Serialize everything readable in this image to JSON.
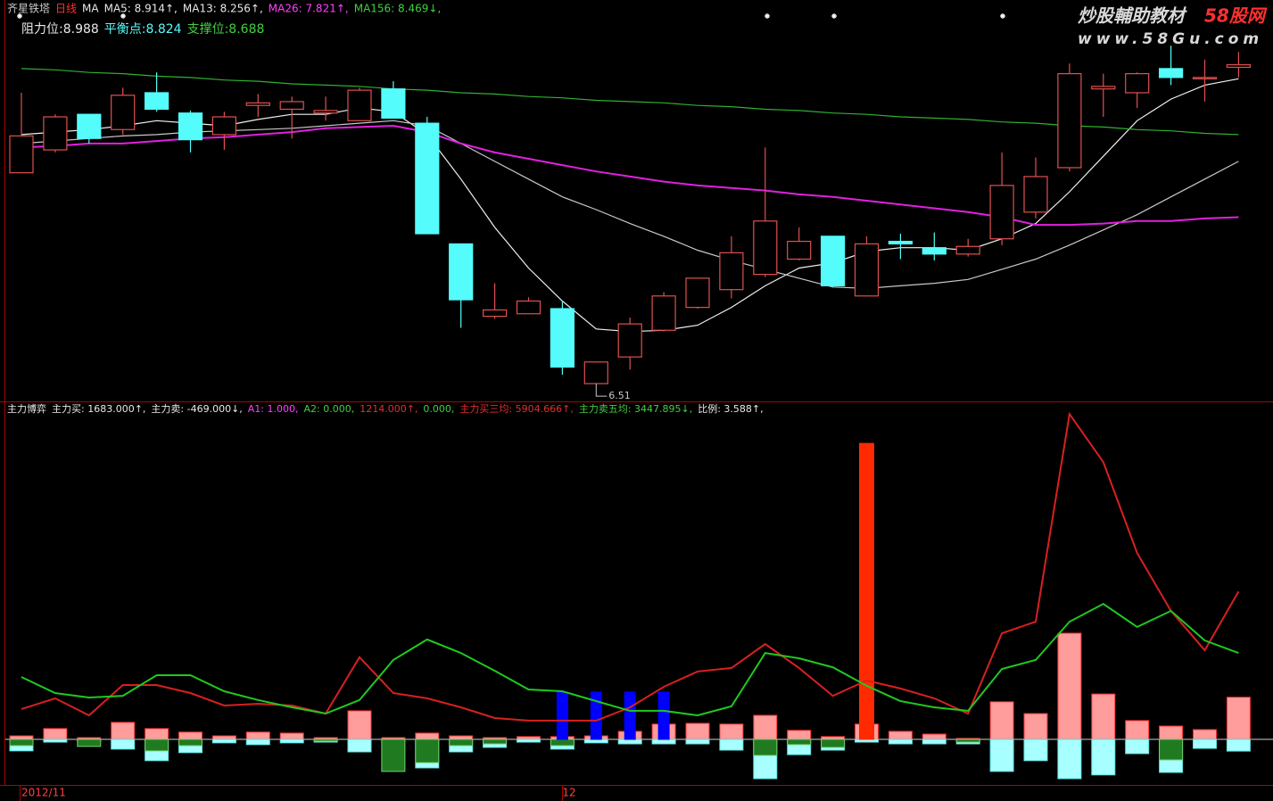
{
  "watermark": {
    "text": "炒股輔助教材",
    "brand": "58股网",
    "url": "www.58Gu.com"
  },
  "chart_data": [
    {
      "type": "candlestick",
      "title": "齐星铁塔",
      "period": "日线",
      "readouts": [
        {
          "text": "MA",
          "color": "#e8e8e8"
        },
        {
          "text": "MA5: 8.914↑,",
          "color": "#e8e8e8"
        },
        {
          "text": "MA13: 8.256↑,",
          "color": "#e8e8e8"
        },
        {
          "text": "MA26: 7.821↑,",
          "color": "#ff40ff"
        },
        {
          "text": "MA156: 8.469↓,",
          "color": "#40d040"
        }
      ],
      "levels": [
        {
          "text": "阻力位:8.988",
          "color": "#e8e8e8"
        },
        {
          "text": "平衡点:8.824",
          "color": "#54fcfc"
        },
        {
          "text": "支撑位:8.688",
          "color": "#40d040"
        }
      ],
      "min_label": "6.51",
      "up_color": "#e05050",
      "down_color": "#54fcfc",
      "ylim": [
        6.37,
        9.53
      ],
      "open": [
        8.17,
        8.35,
        8.63,
        8.51,
        8.8,
        8.64,
        8.47,
        8.7,
        8.67,
        8.64,
        8.58,
        8.83,
        8.56,
        7.61,
        7.04,
        7.06,
        7.1,
        6.51,
        6.72,
        6.93,
        7.11,
        7.25,
        7.37,
        7.49,
        7.67,
        7.2,
        7.63,
        7.58,
        7.53,
        7.65,
        7.86,
        8.21,
        8.83,
        8.8,
        8.99,
        8.91,
        9.0
      ],
      "high": [
        8.8,
        8.63,
        8.63,
        8.84,
        8.96,
        8.66,
        8.65,
        8.79,
        8.77,
        8.77,
        8.84,
        8.89,
        8.61,
        7.61,
        7.3,
        7.19,
        7.16,
        6.68,
        7.03,
        7.23,
        7.34,
        7.67,
        8.37,
        7.74,
        7.67,
        7.67,
        7.69,
        7.7,
        7.65,
        8.33,
        8.29,
        9.03,
        8.95,
        8.96,
        9.17,
        9.06,
        9.12
      ],
      "low": [
        8.17,
        8.33,
        8.4,
        8.47,
        8.65,
        8.33,
        8.35,
        8.61,
        8.44,
        8.58,
        8.58,
        8.6,
        7.69,
        6.95,
        7.02,
        7.06,
        6.58,
        6.51,
        6.62,
        6.92,
        7.1,
        7.18,
        7.35,
        7.48,
        7.27,
        7.2,
        7.49,
        7.48,
        7.51,
        7.6,
        7.81,
        8.18,
        8.61,
        8.68,
        8.86,
        8.73,
        8.92
      ],
      "close": [
        8.46,
        8.61,
        8.44,
        8.78,
        8.67,
        8.43,
        8.61,
        8.72,
        8.73,
        8.66,
        8.82,
        8.6,
        7.69,
        7.17,
        7.09,
        7.16,
        6.64,
        6.68,
        6.98,
        7.2,
        7.34,
        7.54,
        7.79,
        7.63,
        7.28,
        7.61,
        7.61,
        7.53,
        7.59,
        8.07,
        8.14,
        8.95,
        8.85,
        8.95,
        8.92,
        8.92,
        9.02
      ],
      "series": [
        {
          "color": "#f0f0f0",
          "values": [
            8.47,
            8.49,
            8.51,
            8.54,
            8.58,
            8.56,
            8.54,
            8.59,
            8.63,
            8.63,
            8.68,
            8.65,
            8.47,
            8.12,
            7.74,
            7.42,
            7.16,
            6.94,
            6.92,
            6.93,
            6.97,
            7.11,
            7.28,
            7.42,
            7.46,
            7.55,
            7.58,
            7.58,
            7.56,
            7.65,
            7.77,
            8.02,
            8.3,
            8.58,
            8.75,
            8.86,
            8.91
          ]
        },
        {
          "color": "#c8c8c8",
          "values": [
            8.4,
            8.42,
            8.44,
            8.46,
            8.47,
            8.49,
            8.5,
            8.51,
            8.52,
            8.54,
            8.56,
            8.58,
            8.54,
            8.4,
            8.26,
            8.12,
            7.98,
            7.88,
            7.77,
            7.67,
            7.56,
            7.48,
            7.41,
            7.34,
            7.27,
            7.26,
            7.28,
            7.3,
            7.33,
            7.41,
            7.49,
            7.6,
            7.72,
            7.84,
            7.98,
            8.12,
            8.26
          ]
        },
        {
          "color": "#e020e0",
          "values": [
            8.37,
            8.38,
            8.4,
            8.4,
            8.42,
            8.44,
            8.45,
            8.47,
            8.49,
            8.52,
            8.53,
            8.54,
            8.49,
            8.4,
            8.33,
            8.28,
            8.23,
            8.18,
            8.14,
            8.1,
            8.07,
            8.05,
            8.03,
            8.0,
            7.98,
            7.95,
            7.92,
            7.89,
            7.86,
            7.82,
            7.76,
            7.76,
            7.77,
            7.79,
            7.79,
            7.81,
            7.82
          ]
        },
        {
          "color": "#30b030",
          "values": [
            8.99,
            8.98,
            8.96,
            8.95,
            8.93,
            8.92,
            8.9,
            8.89,
            8.87,
            8.86,
            8.85,
            8.83,
            8.82,
            8.8,
            8.79,
            8.77,
            8.76,
            8.74,
            8.73,
            8.72,
            8.7,
            8.69,
            8.67,
            8.66,
            8.64,
            8.63,
            8.61,
            8.6,
            8.59,
            8.57,
            8.56,
            8.54,
            8.53,
            8.51,
            8.5,
            8.48,
            8.47
          ]
        }
      ]
    },
    {
      "type": "bar_line",
      "title": "主力博弈",
      "readouts": [
        {
          "text": "主力买: 1683.000↑,",
          "color": "#e8e8e8"
        },
        {
          "text": "主力卖: -469.000↓,",
          "color": "#e8e8e8"
        },
        {
          "text": "A1: 1.000,",
          "color": "#ff40ff"
        },
        {
          "text": "A2: 0.000,",
          "color": "#40d040"
        },
        {
          "text": "1214.000↑,",
          "color": "#e03030"
        },
        {
          "text": "0.000,",
          "color": "#40d040"
        },
        {
          "text": "主力买三均: 5904.666↑,",
          "color": "#e03030"
        },
        {
          "text": "主力卖五均: 3447.895↓,",
          "color": "#40d040"
        },
        {
          "text": "比例: 3.588↑,",
          "color": "#e8e8e8"
        }
      ],
      "categories": [
        "2012/11",
        null,
        null,
        null,
        null,
        null,
        null,
        null,
        null,
        null,
        null,
        null,
        null,
        null,
        null,
        null,
        "12",
        null,
        null,
        null,
        null,
        null,
        null,
        null,
        null,
        null,
        null,
        null,
        null,
        null,
        null,
        null,
        null,
        null,
        null,
        null,
        null
      ],
      "ylim": [
        -1820,
        13070
      ],
      "series": [
        {
          "kind": "bar",
          "color": "#ff9c9c",
          "stroke": "#ff3030",
          "values": [
            140,
            430,
            70,
            680,
            430,
            290,
            140,
            290,
            250,
            70,
            1140,
            70,
            250,
            140,
            70,
            110,
            110,
            140,
            320,
            610,
            640,
            610,
            960,
            360,
            110,
            610,
            320,
            210,
            40,
            1500,
            1030,
            4240,
            1810,
            750,
            530,
            390,
            1683
          ]
        },
        {
          "kind": "bar",
          "color": "#a8ffff",
          "stroke": "#60e0e0",
          "values": [
            -460,
            -110,
            -70,
            -390,
            -850,
            -530,
            -140,
            -210,
            -140,
            -110,
            -500,
            -70,
            -1140,
            -500,
            -320,
            -110,
            -390,
            -140,
            -180,
            -180,
            -180,
            -430,
            -1570,
            -610,
            -430,
            -110,
            -180,
            -180,
            -180,
            -1280,
            -850,
            -1570,
            -1420,
            -570,
            -1320,
            -360,
            -469
          ]
        },
        {
          "kind": "bar",
          "color": "#207a20",
          "stroke": "#70d070",
          "values": [
            -250,
            null,
            -280,
            null,
            -460,
            -250,
            null,
            null,
            null,
            -70,
            null,
            -1280,
            -930,
            -250,
            -180,
            null,
            -250,
            null,
            null,
            null,
            null,
            null,
            -640,
            -210,
            -320,
            null,
            null,
            null,
            -110,
            null,
            null,
            null,
            null,
            null,
            -820,
            null,
            null
          ]
        },
        {
          "kind": "bar",
          "color": "#0000ff",
          "stroke": "#0000ff",
          "values": [
            null,
            null,
            null,
            null,
            null,
            null,
            null,
            null,
            null,
            null,
            null,
            null,
            null,
            null,
            null,
            null,
            1890,
            1890,
            1890,
            1890,
            null,
            null,
            null,
            null,
            null,
            null,
            null,
            null,
            null,
            null,
            null,
            null,
            null,
            null,
            null,
            null,
            null
          ]
        },
        {
          "kind": "bar",
          "color": "#ff2a00",
          "stroke": "#ff2a00",
          "values": [
            null,
            null,
            null,
            null,
            null,
            null,
            null,
            null,
            null,
            null,
            null,
            null,
            null,
            null,
            null,
            null,
            null,
            null,
            null,
            null,
            null,
            null,
            null,
            null,
            null,
            11820,
            null,
            null,
            null,
            null,
            null,
            null,
            null,
            null,
            null,
            null,
            null
          ]
        },
        {
          "kind": "line",
          "color": "#d82020",
          "values": [
            1210,
            1640,
            960,
            2170,
            2170,
            1850,
            1350,
            1420,
            1350,
            1030,
            3280,
            1850,
            1640,
            1280,
            850,
            750,
            750,
            750,
            1280,
            2100,
            2710,
            2850,
            3810,
            2850,
            1740,
            2350,
            2030,
            1640,
            1030,
            4240,
            4700,
            12990,
            11070,
            7440,
            5130,
            3560,
            5905
          ]
        },
        {
          "kind": "line",
          "color": "#20c820",
          "values": [
            2490,
            1850,
            1670,
            1740,
            2560,
            2560,
            1920,
            1570,
            1280,
            1030,
            1570,
            3170,
            3990,
            3450,
            2740,
            1990,
            1920,
            1530,
            1140,
            1140,
            960,
            1320,
            3450,
            3240,
            2880,
            2140,
            1530,
            1280,
            1140,
            2810,
            3170,
            4700,
            5410,
            4490,
            5130,
            3950,
            3448
          ]
        }
      ]
    }
  ]
}
